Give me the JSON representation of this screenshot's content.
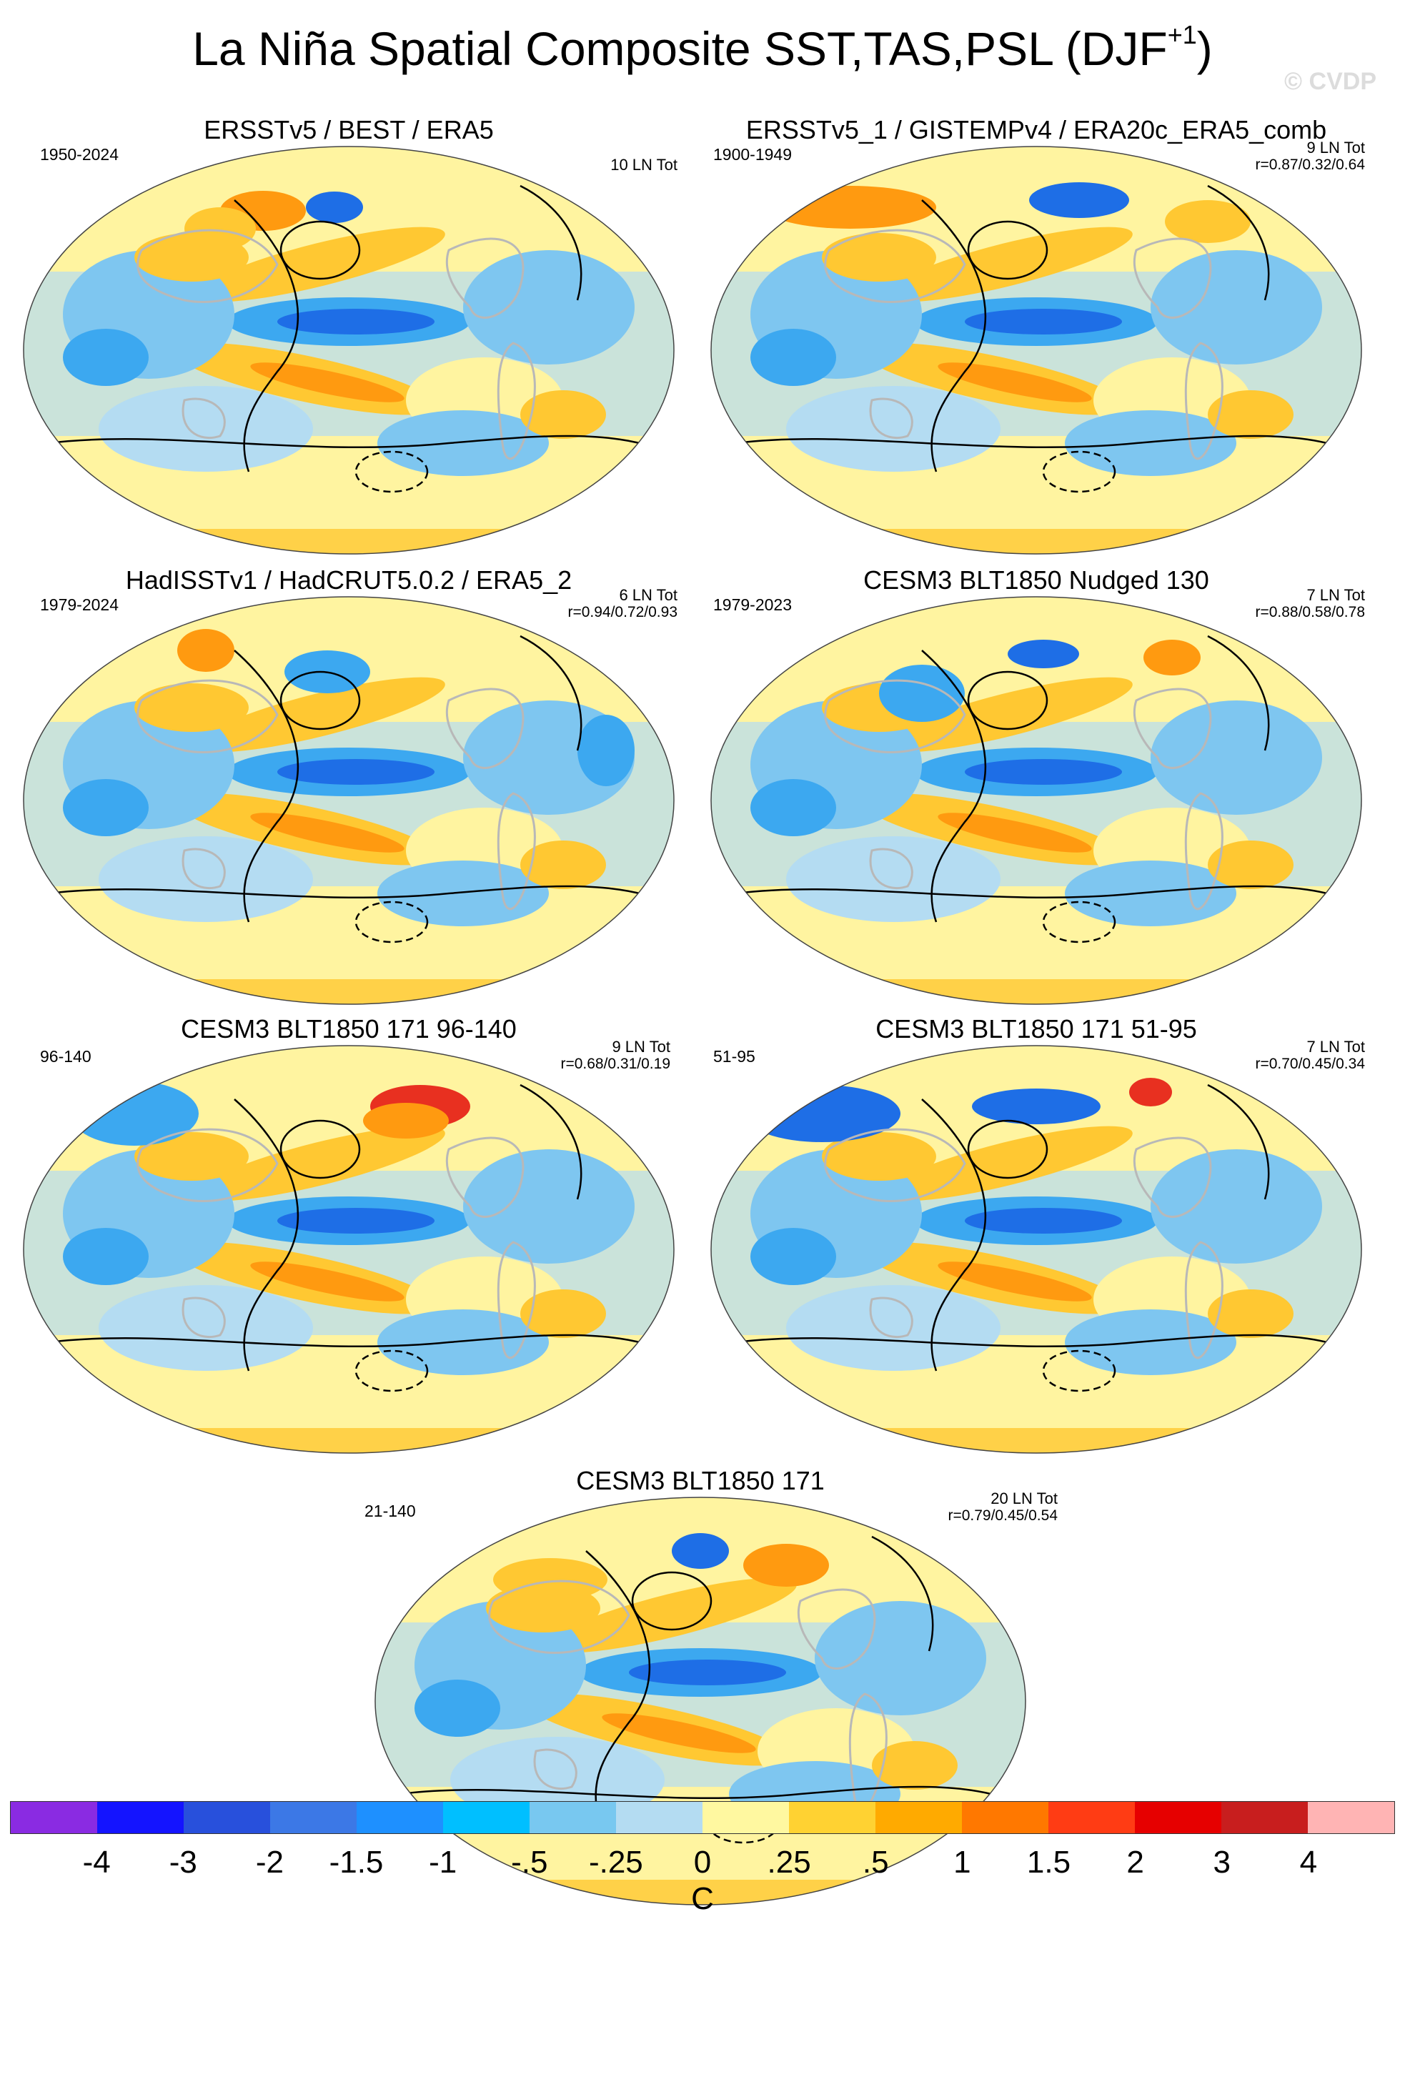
{
  "title": {
    "main": "La Niña Spatial Composite SST,TAS,PSL (DJF",
    "superscript": "+1",
    "close": ")"
  },
  "watermark": "© CVDP",
  "palette": {
    "cold3": "#1e6ee6",
    "cold2": "#3ca8f0",
    "cold1": "#7ec6f0",
    "cold0": "#b4dcf2",
    "warm0": "#fff4a0",
    "warm1": "#ffc832",
    "warm2": "#ff9a10",
    "warm3": "#e83020",
    "land_outline": "#b8b8b8",
    "contour": "#000000"
  },
  "panels": [
    {
      "title": "ERSSTv5 / BEST / ERA5",
      "period": "1950-2024",
      "count": "10 LN Tot",
      "corr": "",
      "style": 0
    },
    {
      "title": "ERSSTv5_1 / GISTEMPv4 / ERA20c_ERA5_comb",
      "period": "1900-1949",
      "count": "9 LN Tot",
      "corr": "r=0.87/0.32/0.64",
      "style": 1
    },
    {
      "title": "HadISSTv1 / HadCRUT5.0.2 / ERA5_2",
      "period": "1979-2024",
      "count": "6 LN Tot",
      "corr": "r=0.94/0.72/0.93",
      "style": 2
    },
    {
      "title": "CESM3 BLT1850 Nudged 130",
      "period": "1979-2023",
      "count": "7 LN Tot",
      "corr": "r=0.88/0.58/0.78",
      "style": 3
    },
    {
      "title": "CESM3 BLT1850 171 96-140",
      "period": "96-140",
      "count": "9 LN Tot",
      "corr": "r=0.68/0.31/0.19",
      "style": 4
    },
    {
      "title": "CESM3 BLT1850 171 51-95",
      "period": "51-95",
      "count": "7 LN Tot",
      "corr": "r=0.70/0.45/0.34",
      "style": 5
    },
    {
      "title": "CESM3 BLT1850 171",
      "period": "21-140",
      "count": "20 LN Tot",
      "corr": "r=0.79/0.45/0.54",
      "style": 6
    }
  ],
  "colorbar": {
    "colors": [
      "#8a2be2",
      "#1414ff",
      "#2850dc",
      "#3c78e6",
      "#1e90ff",
      "#00bfff",
      "#78c8f0",
      "#b4dcf2",
      "#fff8a0",
      "#ffd232",
      "#ffaa00",
      "#ff7800",
      "#ff3c14",
      "#e60000",
      "#c81e1e",
      "#ffb4b4"
    ],
    "labels": [
      "-4",
      "-3",
      "-2",
      "-1.5",
      "-1",
      "-.5",
      "-.25",
      "0",
      ".25",
      ".5",
      "1",
      "1.5",
      "2",
      "3",
      "4"
    ],
    "units": "C"
  }
}
